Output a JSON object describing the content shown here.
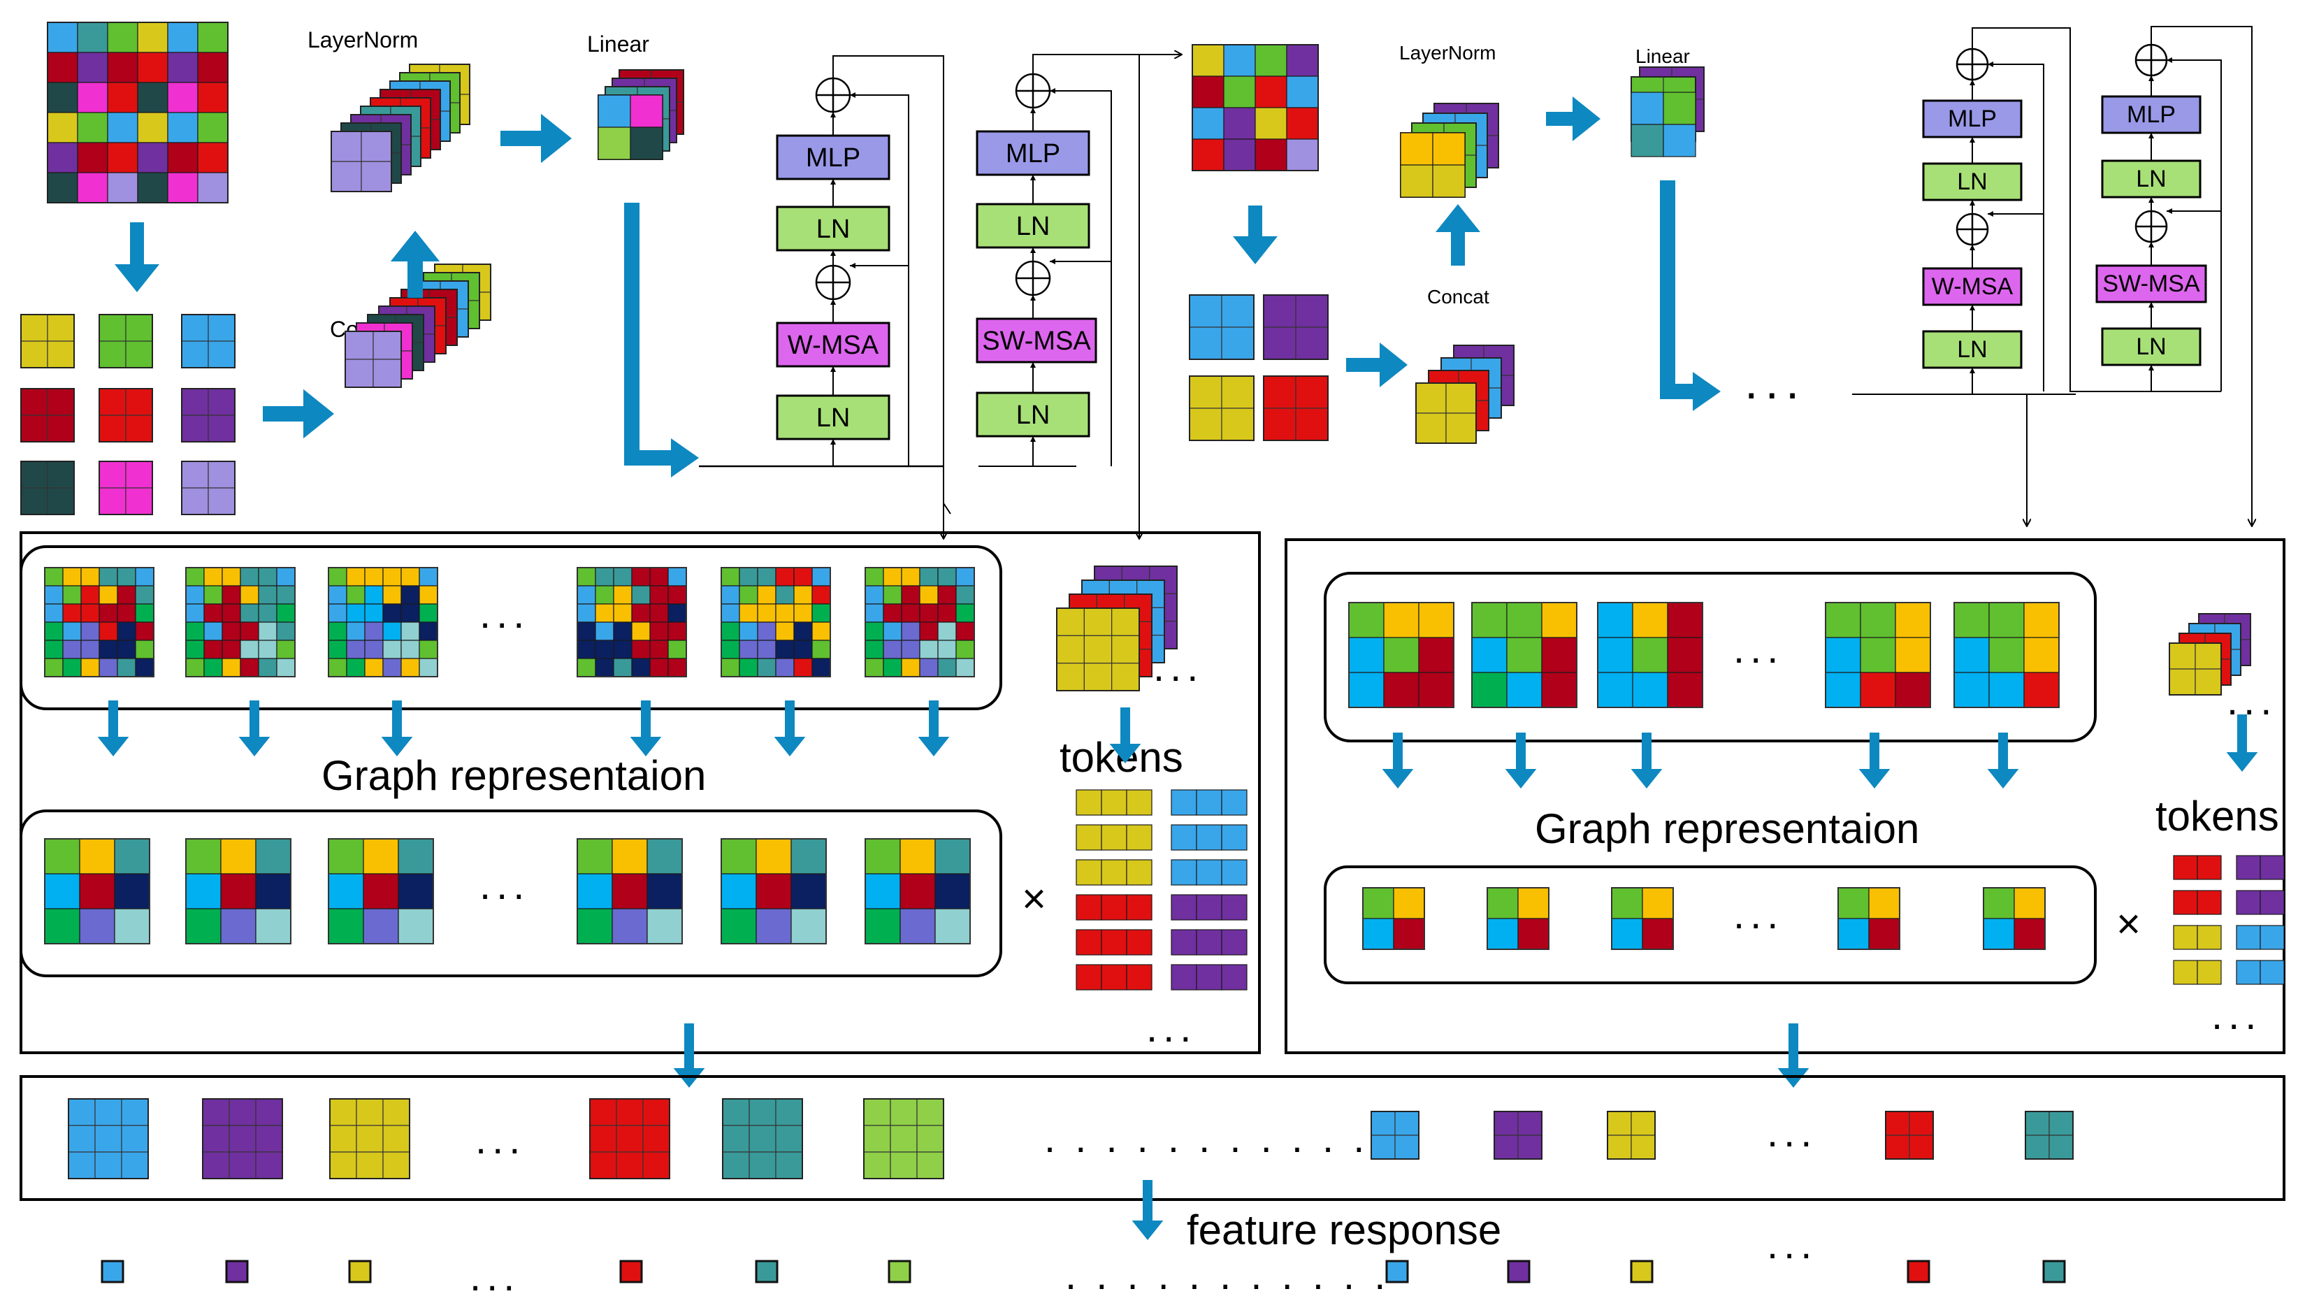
{
  "colors": {
    "blue": "#3aa6ea",
    "purple": "#7030a0",
    "yellow": "#d8c81c",
    "red": "#e01010",
    "teal": "#3a9a9a",
    "lightgreen": "#8fd048",
    "green": "#60c030",
    "darkred": "#b0001a",
    "darkteal": "#204848",
    "magenta": "#f030d0",
    "lavender": "#a090e0",
    "orange": "#f8c000",
    "navy": "#0a2060",
    "cyan": "#00b0f0",
    "emerald": "#00b050",
    "slate": "#6a6ad0",
    "mint": "#90d0d0",
    "mlp_fill": "#9999e8",
    "ln_fill": "#a8e078",
    "msa_fill": "#dd66ee",
    "arrow": "#0e88c0"
  },
  "labels": {
    "layernorm_1": "LayerNorm",
    "linear_1": "Linear",
    "concat_1": "Concat",
    "layernorm_2": "LayerNorm",
    "linear_2": "Linear",
    "concat_2": "Concat",
    "graph_repr_1": "Graph representaion",
    "graph_repr_2": "Graph representaion",
    "tokens_1": "tokens",
    "tokens_2": "tokens",
    "feature_response": "feature response",
    "times_1": "×",
    "times_2": "×"
  },
  "block1": {
    "mlp": "MLP",
    "ln_top": "LN",
    "msa": "W-MSA",
    "ln_bottom": "LN"
  },
  "block2": {
    "mlp": "MLP",
    "ln_top": "LN",
    "msa": "SW-MSA",
    "ln_bottom": "LN"
  },
  "block3": {
    "mlp": "MLP",
    "ln_top": "LN",
    "msa": "W-MSA",
    "ln_bottom": "LN"
  },
  "block4": {
    "mlp": "MLP",
    "ln_top": "LN",
    "msa": "SW-MSA",
    "ln_bottom": "LN"
  },
  "ellipsis": "..."
}
